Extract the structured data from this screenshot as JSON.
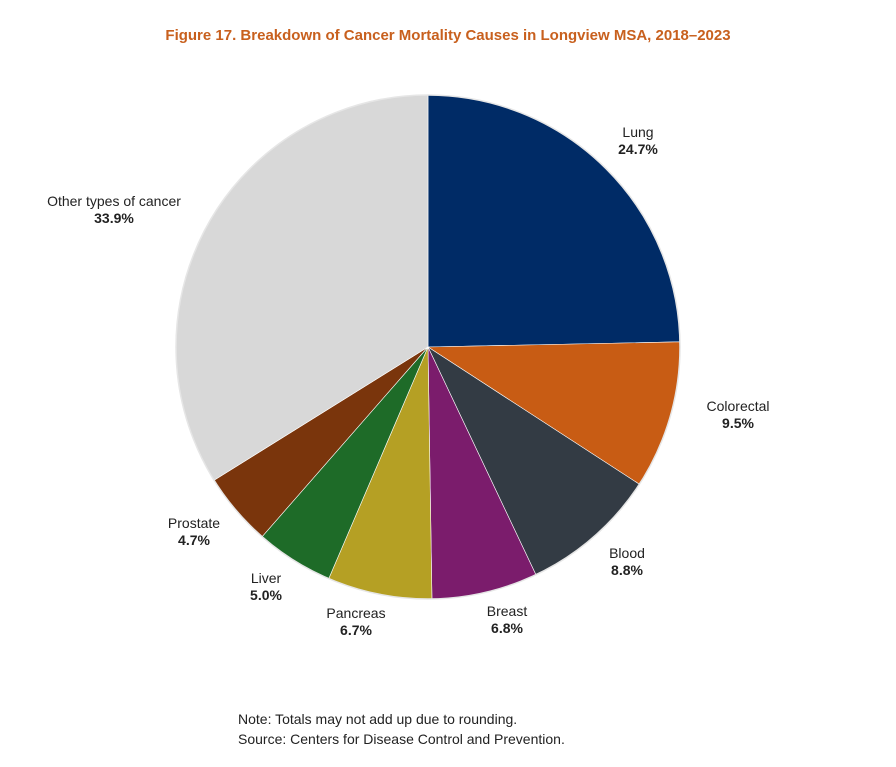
{
  "chart_data": {
    "type": "pie",
    "title": "Figure 17. Breakdown of Cancer Mortality Causes in Longview MSA, 2018–2023",
    "start": "12 o'clock, clockwise",
    "slices": [
      {
        "name": "Lung",
        "value": 24.7,
        "label": "24.7%",
        "color": "#002b66"
      },
      {
        "name": "Colorectal",
        "value": 9.5,
        "label": "9.5%",
        "color": "#c85c14"
      },
      {
        "name": "Blood",
        "value": 8.8,
        "label": "8.8%",
        "color": "#333b44"
      },
      {
        "name": "Breast",
        "value": 6.8,
        "label": "6.8%",
        "color": "#7b1c6c"
      },
      {
        "name": "Pancreas",
        "value": 6.7,
        "label": "6.7%",
        "color": "#b5a024"
      },
      {
        "name": "Liver",
        "value": 5.0,
        "label": "5.0%",
        "color": "#1e6b28"
      },
      {
        "name": "Prostate",
        "value": 4.7,
        "label": "4.7%",
        "color": "#7a350c"
      },
      {
        "name": "Other types of cancer",
        "value": 33.9,
        "label": "33.9%",
        "color": "#d8d8d8"
      }
    ]
  },
  "notes": {
    "note": "Note: Totals may not add up due to rounding.",
    "source": "Source: Centers for Disease Control and Prevention."
  }
}
